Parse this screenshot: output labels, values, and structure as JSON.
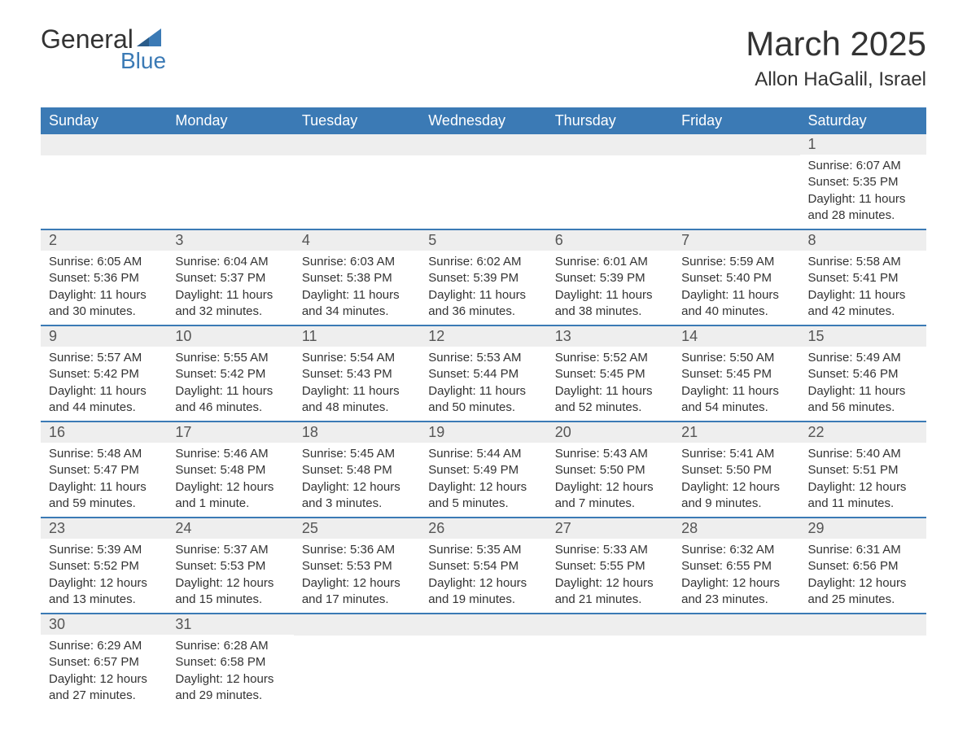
{
  "logo": {
    "part1": "General",
    "part2": "Blue",
    "color_blue": "#3b7ab5",
    "color_dark": "#333333"
  },
  "header": {
    "month_title": "March 2025",
    "location": "Allon HaGalil, Israel"
  },
  "calendar": {
    "header_bg": "#3b7ab5",
    "header_fg": "#ffffff",
    "row_border_color": "#3b7ab5",
    "daynum_bg": "#eeeeee",
    "font_family": "Arial",
    "day_headers": [
      "Sunday",
      "Monday",
      "Tuesday",
      "Wednesday",
      "Thursday",
      "Friday",
      "Saturday"
    ],
    "weeks": [
      [
        null,
        null,
        null,
        null,
        null,
        null,
        {
          "n": "1",
          "sunrise": "6:07 AM",
          "sunset": "5:35 PM",
          "daylight": "11 hours and 28 minutes."
        }
      ],
      [
        {
          "n": "2",
          "sunrise": "6:05 AM",
          "sunset": "5:36 PM",
          "daylight": "11 hours and 30 minutes."
        },
        {
          "n": "3",
          "sunrise": "6:04 AM",
          "sunset": "5:37 PM",
          "daylight": "11 hours and 32 minutes."
        },
        {
          "n": "4",
          "sunrise": "6:03 AM",
          "sunset": "5:38 PM",
          "daylight": "11 hours and 34 minutes."
        },
        {
          "n": "5",
          "sunrise": "6:02 AM",
          "sunset": "5:39 PM",
          "daylight": "11 hours and 36 minutes."
        },
        {
          "n": "6",
          "sunrise": "6:01 AM",
          "sunset": "5:39 PM",
          "daylight": "11 hours and 38 minutes."
        },
        {
          "n": "7",
          "sunrise": "5:59 AM",
          "sunset": "5:40 PM",
          "daylight": "11 hours and 40 minutes."
        },
        {
          "n": "8",
          "sunrise": "5:58 AM",
          "sunset": "5:41 PM",
          "daylight": "11 hours and 42 minutes."
        }
      ],
      [
        {
          "n": "9",
          "sunrise": "5:57 AM",
          "sunset": "5:42 PM",
          "daylight": "11 hours and 44 minutes."
        },
        {
          "n": "10",
          "sunrise": "5:55 AM",
          "sunset": "5:42 PM",
          "daylight": "11 hours and 46 minutes."
        },
        {
          "n": "11",
          "sunrise": "5:54 AM",
          "sunset": "5:43 PM",
          "daylight": "11 hours and 48 minutes."
        },
        {
          "n": "12",
          "sunrise": "5:53 AM",
          "sunset": "5:44 PM",
          "daylight": "11 hours and 50 minutes."
        },
        {
          "n": "13",
          "sunrise": "5:52 AM",
          "sunset": "5:45 PM",
          "daylight": "11 hours and 52 minutes."
        },
        {
          "n": "14",
          "sunrise": "5:50 AM",
          "sunset": "5:45 PM",
          "daylight": "11 hours and 54 minutes."
        },
        {
          "n": "15",
          "sunrise": "5:49 AM",
          "sunset": "5:46 PM",
          "daylight": "11 hours and 56 minutes."
        }
      ],
      [
        {
          "n": "16",
          "sunrise": "5:48 AM",
          "sunset": "5:47 PM",
          "daylight": "11 hours and 59 minutes."
        },
        {
          "n": "17",
          "sunrise": "5:46 AM",
          "sunset": "5:48 PM",
          "daylight": "12 hours and 1 minute."
        },
        {
          "n": "18",
          "sunrise": "5:45 AM",
          "sunset": "5:48 PM",
          "daylight": "12 hours and 3 minutes."
        },
        {
          "n": "19",
          "sunrise": "5:44 AM",
          "sunset": "5:49 PM",
          "daylight": "12 hours and 5 minutes."
        },
        {
          "n": "20",
          "sunrise": "5:43 AM",
          "sunset": "5:50 PM",
          "daylight": "12 hours and 7 minutes."
        },
        {
          "n": "21",
          "sunrise": "5:41 AM",
          "sunset": "5:50 PM",
          "daylight": "12 hours and 9 minutes."
        },
        {
          "n": "22",
          "sunrise": "5:40 AM",
          "sunset": "5:51 PM",
          "daylight": "12 hours and 11 minutes."
        }
      ],
      [
        {
          "n": "23",
          "sunrise": "5:39 AM",
          "sunset": "5:52 PM",
          "daylight": "12 hours and 13 minutes."
        },
        {
          "n": "24",
          "sunrise": "5:37 AM",
          "sunset": "5:53 PM",
          "daylight": "12 hours and 15 minutes."
        },
        {
          "n": "25",
          "sunrise": "5:36 AM",
          "sunset": "5:53 PM",
          "daylight": "12 hours and 17 minutes."
        },
        {
          "n": "26",
          "sunrise": "5:35 AM",
          "sunset": "5:54 PM",
          "daylight": "12 hours and 19 minutes."
        },
        {
          "n": "27",
          "sunrise": "5:33 AM",
          "sunset": "5:55 PM",
          "daylight": "12 hours and 21 minutes."
        },
        {
          "n": "28",
          "sunrise": "6:32 AM",
          "sunset": "6:55 PM",
          "daylight": "12 hours and 23 minutes."
        },
        {
          "n": "29",
          "sunrise": "6:31 AM",
          "sunset": "6:56 PM",
          "daylight": "12 hours and 25 minutes."
        }
      ],
      [
        {
          "n": "30",
          "sunrise": "6:29 AM",
          "sunset": "6:57 PM",
          "daylight": "12 hours and 27 minutes."
        },
        {
          "n": "31",
          "sunrise": "6:28 AM",
          "sunset": "6:58 PM",
          "daylight": "12 hours and 29 minutes."
        },
        null,
        null,
        null,
        null,
        null
      ]
    ],
    "labels": {
      "sunrise": "Sunrise:",
      "sunset": "Sunset:",
      "daylight": "Daylight:"
    }
  }
}
